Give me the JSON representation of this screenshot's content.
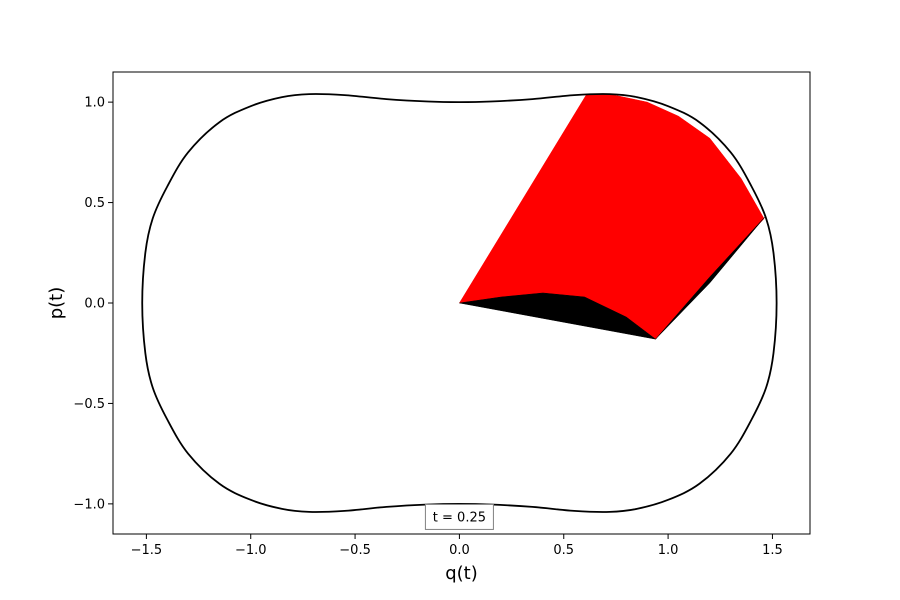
{
  "chart_data": {
    "type": "line",
    "title": "",
    "xlabel": "q(t)",
    "ylabel": "p(t)",
    "xlim": [
      -1.66,
      1.68
    ],
    "ylim": [
      -1.15,
      1.15
    ],
    "xticks": [
      -1.5,
      -1.0,
      -0.5,
      0.0,
      0.5,
      1.0,
      1.5
    ],
    "xtick_labels": [
      "−1.5",
      "−1.0",
      "−0.5",
      "0.0",
      "0.5",
      "1.0",
      "1.5"
    ],
    "yticks": [
      -1.0,
      -0.5,
      0.0,
      0.5,
      1.0
    ],
    "ytick_labels": [
      "−1.0",
      "−0.5",
      "0.0",
      "0.5",
      "1.0"
    ],
    "grid": false,
    "annotation": {
      "text": "t = 0.25",
      "x": 0.0,
      "y": -1.065
    },
    "series": [
      {
        "kind": "closed-curve",
        "color": "#000000",
        "points": [
          [
            1.52,
            0.0
          ],
          [
            1.505,
            0.25
          ],
          [
            1.47,
            0.42
          ],
          [
            1.4,
            0.58
          ],
          [
            1.3,
            0.75
          ],
          [
            1.15,
            0.9
          ],
          [
            1.0,
            0.98
          ],
          [
            0.85,
            1.025
          ],
          [
            0.72,
            1.04
          ],
          [
            0.55,
            1.035
          ],
          [
            0.35,
            1.015
          ],
          [
            0.15,
            1.003
          ],
          [
            0.0,
            1.0
          ],
          [
            -0.15,
            1.003
          ],
          [
            -0.35,
            1.015
          ],
          [
            -0.55,
            1.035
          ],
          [
            -0.72,
            1.04
          ],
          [
            -0.85,
            1.025
          ],
          [
            -1.0,
            0.98
          ],
          [
            -1.15,
            0.9
          ],
          [
            -1.3,
            0.75
          ],
          [
            -1.4,
            0.58
          ],
          [
            -1.47,
            0.42
          ],
          [
            -1.505,
            0.25
          ],
          [
            -1.52,
            0.0
          ],
          [
            -1.505,
            -0.25
          ],
          [
            -1.47,
            -0.42
          ],
          [
            -1.4,
            -0.58
          ],
          [
            -1.3,
            -0.75
          ],
          [
            -1.15,
            -0.9
          ],
          [
            -1.0,
            -0.98
          ],
          [
            -0.85,
            -1.025
          ],
          [
            -0.72,
            -1.04
          ],
          [
            -0.55,
            -1.035
          ],
          [
            -0.35,
            -1.015
          ],
          [
            -0.15,
            -1.003
          ],
          [
            0.0,
            -1.0
          ],
          [
            0.15,
            -1.003
          ],
          [
            0.35,
            -1.015
          ],
          [
            0.55,
            -1.035
          ],
          [
            0.72,
            -1.04
          ],
          [
            0.85,
            -1.025
          ],
          [
            1.0,
            -0.98
          ],
          [
            1.15,
            -0.9
          ],
          [
            1.3,
            -0.75
          ],
          [
            1.4,
            -0.58
          ],
          [
            1.47,
            -0.42
          ],
          [
            1.505,
            -0.25
          ]
        ]
      },
      {
        "kind": "filled-region",
        "color": "#ff0000",
        "points": [
          [
            0.0,
            0.0
          ],
          [
            0.61,
            1.04
          ],
          [
            0.72,
            1.04
          ],
          [
            0.9,
            1.0
          ],
          [
            1.05,
            0.93
          ],
          [
            1.2,
            0.82
          ],
          [
            1.35,
            0.62
          ],
          [
            1.46,
            0.42
          ],
          [
            1.2,
            0.13
          ],
          [
            0.94,
            -0.18
          ],
          [
            0.8,
            -0.07
          ],
          [
            0.6,
            0.03
          ],
          [
            0.4,
            0.05
          ],
          [
            0.2,
            0.03
          ]
        ]
      },
      {
        "kind": "filled-region",
        "color": "#000000",
        "points": [
          [
            0.0,
            0.0
          ],
          [
            0.2,
            0.03
          ],
          [
            0.4,
            0.05
          ],
          [
            0.6,
            0.03
          ],
          [
            0.8,
            -0.07
          ],
          [
            0.94,
            -0.18
          ],
          [
            1.2,
            0.13
          ],
          [
            1.465,
            0.43
          ],
          [
            1.2,
            0.1
          ],
          [
            0.94,
            -0.18
          ]
        ]
      }
    ]
  }
}
